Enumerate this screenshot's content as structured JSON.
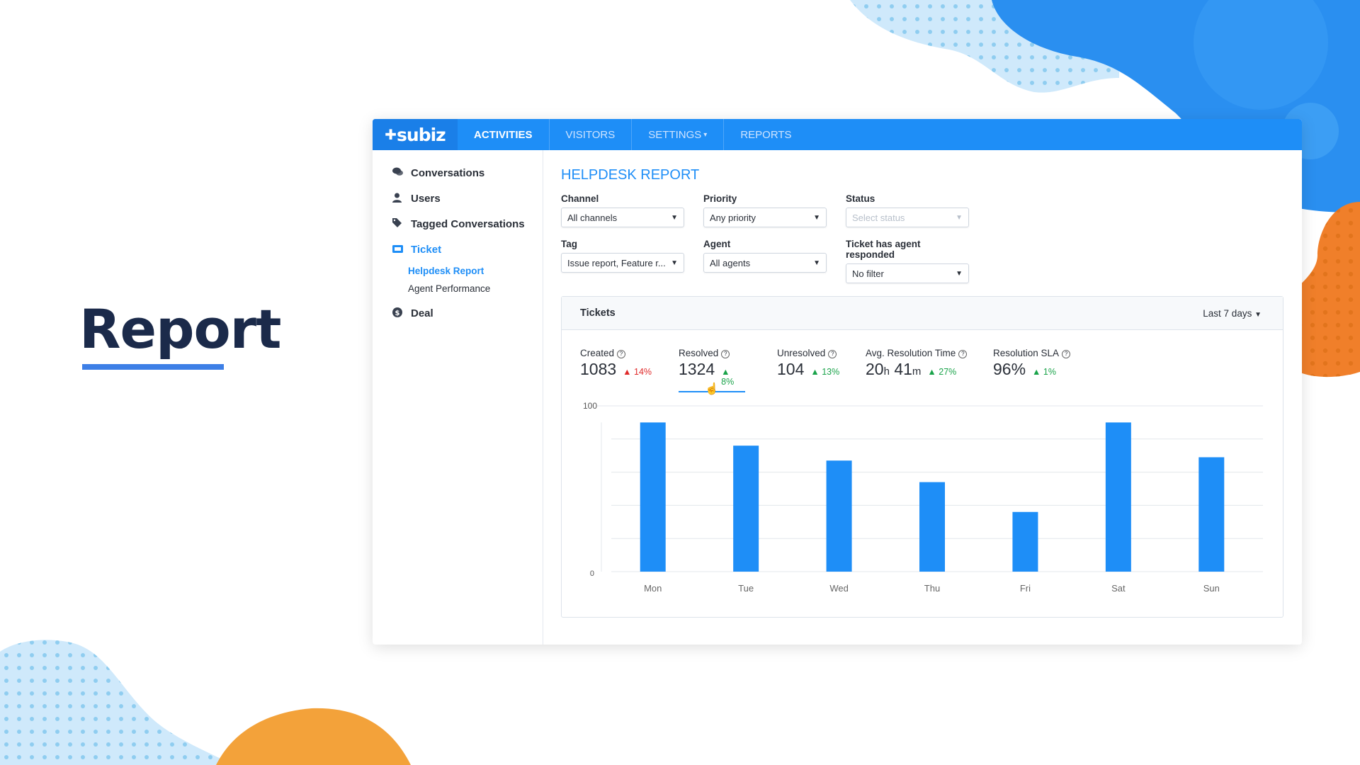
{
  "hero": {
    "title": "Report"
  },
  "topbar": {
    "logo": "subiz",
    "nav": [
      {
        "label": "ACTIVITIES",
        "active": true
      },
      {
        "label": "VISITORS",
        "active": false
      },
      {
        "label": "SETTINGS",
        "active": false,
        "dropdown": true
      },
      {
        "label": "REPORTS",
        "active": false
      }
    ]
  },
  "sidebar": {
    "items": [
      {
        "label": "Conversations",
        "icon": "comments-icon"
      },
      {
        "label": "Users",
        "icon": "user-icon"
      },
      {
        "label": "Tagged Conversations",
        "icon": "tags-icon"
      },
      {
        "label": "Ticket",
        "icon": "ticket-icon",
        "active": true,
        "children": [
          {
            "label": "Helpdesk Report",
            "active": true
          },
          {
            "label": "Agent Performance",
            "active": false
          }
        ]
      },
      {
        "label": "Deal",
        "icon": "dollar-icon"
      }
    ]
  },
  "main": {
    "title": "HELPDESK REPORT",
    "filters": [
      {
        "label": "Channel",
        "value": "All channels"
      },
      {
        "label": "Priority",
        "value": "Any priority"
      },
      {
        "label": "Status",
        "value": "",
        "placeholder": "Select status"
      },
      {
        "label": "Tag",
        "value": "Issue report, Feature r..."
      },
      {
        "label": "Agent",
        "value": "All agents"
      },
      {
        "label": "Ticket has agent responded",
        "value": "No filter"
      }
    ],
    "card": {
      "title": "Tickets",
      "range": "Last 7 days",
      "stats": [
        {
          "label": "Created",
          "value": "1083",
          "change": "14%",
          "direction": "down"
        },
        {
          "label": "Resolved",
          "value": "1324",
          "change": "8%",
          "direction": "up",
          "selected": true
        },
        {
          "label": "Unresolved",
          "value": "104",
          "change": "13%",
          "direction": "up"
        },
        {
          "label": "Avg. Resolution Time",
          "value_h": "20",
          "unit_h": "h",
          "value_m": "41",
          "unit_m": "m",
          "change": "27%",
          "direction": "up"
        },
        {
          "label": "Resolution SLA",
          "value": "96%",
          "change": "1%",
          "direction": "up"
        }
      ]
    }
  },
  "colors": {
    "accent": "#1e8ef7",
    "up": "#1aa34a",
    "down": "#e02a2a",
    "bar": "#1e8ef7"
  },
  "chart_data": {
    "type": "bar",
    "categories": [
      "Mon",
      "Tue",
      "Wed",
      "Thu",
      "Fri",
      "Sat",
      "Sun"
    ],
    "values": [
      90,
      76,
      67,
      54,
      36,
      90,
      69
    ],
    "ylim": [
      0,
      100
    ],
    "yticks": [
      "100",
      "0"
    ],
    "grid": true
  }
}
